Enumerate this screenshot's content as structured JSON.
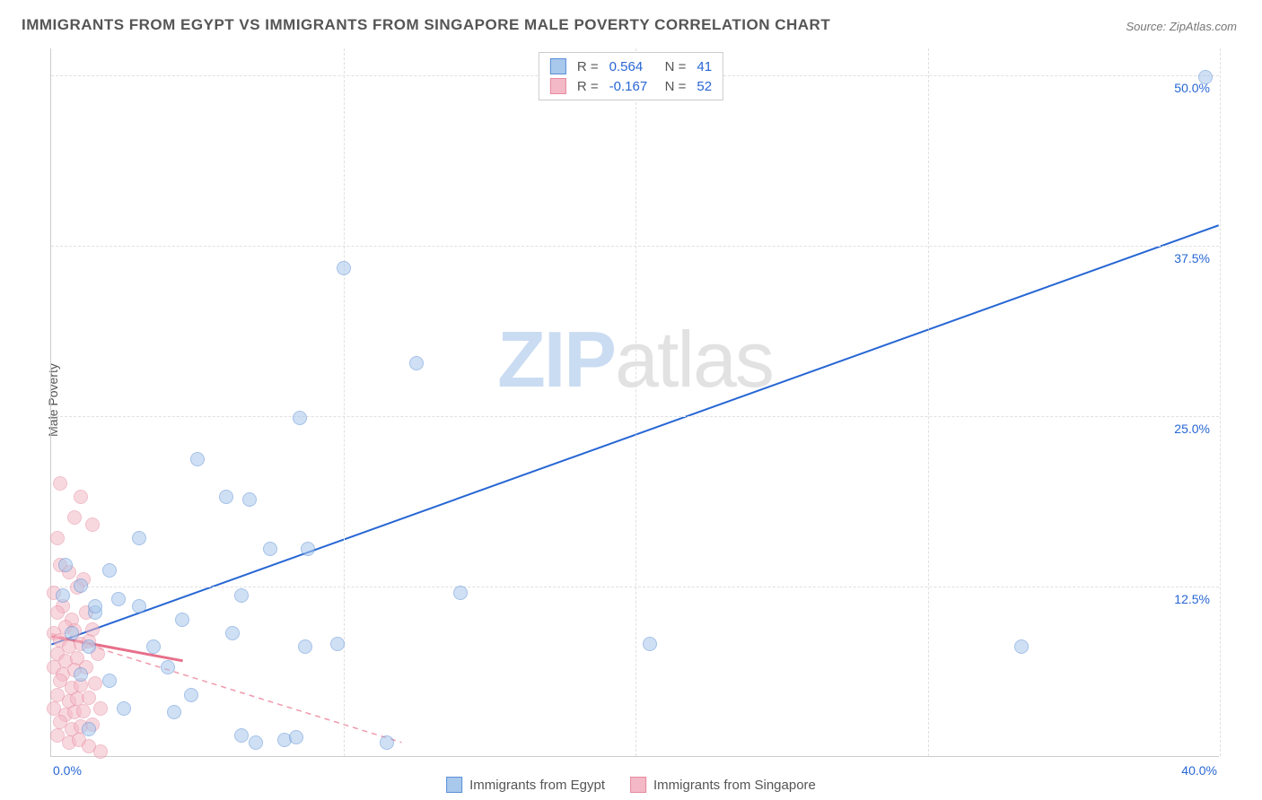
{
  "title": "IMMIGRANTS FROM EGYPT VS IMMIGRANTS FROM SINGAPORE MALE POVERTY CORRELATION CHART",
  "source": "Source: ZipAtlas.com",
  "ylabel": "Male Poverty",
  "watermark_bold": "ZIP",
  "watermark_rest": "atlas",
  "chart": {
    "type": "scatter",
    "xlim": [
      0,
      40
    ],
    "ylim": [
      0,
      52
    ],
    "xtick_min_label": "0.0%",
    "xtick_max_label": "40.0%",
    "yticks": [
      12.5,
      25.0,
      37.5,
      50.0
    ],
    "ytick_labels": [
      "12.5%",
      "25.0%",
      "37.5%",
      "50.0%"
    ],
    "xgrid": [
      10,
      20,
      30,
      40
    ],
    "plot_bg": "#ffffff",
    "grid_color": "#e0e0e0",
    "axis_color": "#cccccc"
  },
  "series": {
    "egypt": {
      "label": "Immigrants from Egypt",
      "color_fill": "#a8c8ec",
      "color_stroke": "#5b8fd6",
      "r_label": "R =",
      "r_value": "0.564",
      "n_label": "N =",
      "n_value": "41",
      "trend": {
        "x1": 0,
        "y1": 8.2,
        "x2": 40,
        "y2": 39.0,
        "width": 2,
        "dash": "none",
        "color": "#2766d4"
      },
      "points": [
        [
          39.5,
          49.8
        ],
        [
          10.0,
          35.8
        ],
        [
          12.5,
          28.8
        ],
        [
          8.5,
          24.8
        ],
        [
          5.0,
          21.8
        ],
        [
          6.0,
          19.0
        ],
        [
          6.8,
          18.8
        ],
        [
          3.0,
          16.0
        ],
        [
          7.5,
          15.2
        ],
        [
          8.8,
          15.2
        ],
        [
          2.0,
          13.6
        ],
        [
          33.2,
          8.0
        ],
        [
          0.5,
          14.0
        ],
        [
          1.0,
          12.5
        ],
        [
          3.0,
          11.0
        ],
        [
          1.5,
          10.5
        ],
        [
          4.5,
          10.0
        ],
        [
          2.3,
          11.5
        ],
        [
          20.5,
          8.2
        ],
        [
          14.0,
          12.0
        ],
        [
          6.5,
          11.8
        ],
        [
          6.2,
          9.0
        ],
        [
          8.7,
          8.0
        ],
        [
          9.8,
          8.2
        ],
        [
          3.5,
          8.0
        ],
        [
          4.0,
          6.5
        ],
        [
          4.8,
          4.5
        ],
        [
          2.0,
          5.5
        ],
        [
          1.3,
          8.0
        ],
        [
          0.7,
          9.0
        ],
        [
          1.0,
          6.0
        ],
        [
          2.5,
          3.5
        ],
        [
          4.2,
          3.2
        ],
        [
          6.5,
          1.5
        ],
        [
          7.0,
          1.0
        ],
        [
          8.0,
          1.2
        ],
        [
          8.4,
          1.4
        ],
        [
          11.5,
          1.0
        ],
        [
          1.3,
          2.0
        ],
        [
          1.5,
          11.0
        ],
        [
          0.4,
          11.8
        ]
      ]
    },
    "singapore": {
      "label": "Immigrants from Singapore",
      "color_fill": "#f4b9c6",
      "color_stroke": "#e58ba0",
      "r_label": "R =",
      "r_value": "-0.167",
      "n_label": "N =",
      "n_value": "52",
      "trend": {
        "x1": 0,
        "y1": 9.0,
        "x2": 12,
        "y2": 1.0,
        "width": 1.5,
        "dash": "6,5",
        "color": "#f099ac"
      },
      "trend_solid": {
        "x1": 0,
        "y1": 8.8,
        "x2": 4.5,
        "y2": 7.0,
        "width": 3,
        "color": "#e76f8a"
      },
      "points": [
        [
          0.3,
          20.0
        ],
        [
          1.0,
          19.0
        ],
        [
          0.8,
          17.5
        ],
        [
          0.2,
          16.0
        ],
        [
          1.4,
          17.0
        ],
        [
          0.3,
          14.0
        ],
        [
          0.6,
          13.5
        ],
        [
          1.1,
          13.0
        ],
        [
          0.1,
          12.0
        ],
        [
          0.9,
          12.4
        ],
        [
          0.4,
          11.0
        ],
        [
          0.2,
          10.5
        ],
        [
          0.7,
          10.0
        ],
        [
          1.2,
          10.5
        ],
        [
          0.5,
          9.5
        ],
        [
          0.1,
          9.0
        ],
        [
          0.8,
          9.2
        ],
        [
          1.4,
          9.3
        ],
        [
          0.3,
          8.5
        ],
        [
          0.6,
          8.0
        ],
        [
          1.0,
          8.2
        ],
        [
          1.3,
          8.4
        ],
        [
          0.2,
          7.5
        ],
        [
          0.5,
          7.0
        ],
        [
          0.9,
          7.2
        ],
        [
          1.6,
          7.5
        ],
        [
          0.1,
          6.5
        ],
        [
          0.4,
          6.0
        ],
        [
          0.8,
          6.3
        ],
        [
          1.2,
          6.5
        ],
        [
          0.3,
          5.5
        ],
        [
          0.7,
          5.0
        ],
        [
          1.0,
          5.2
        ],
        [
          1.5,
          5.3
        ],
        [
          0.2,
          4.5
        ],
        [
          0.6,
          4.0
        ],
        [
          0.9,
          4.2
        ],
        [
          1.3,
          4.3
        ],
        [
          0.1,
          3.5
        ],
        [
          0.5,
          3.0
        ],
        [
          0.8,
          3.2
        ],
        [
          1.1,
          3.3
        ],
        [
          1.7,
          3.5
        ],
        [
          0.3,
          2.5
        ],
        [
          0.7,
          2.0
        ],
        [
          1.0,
          2.2
        ],
        [
          1.4,
          2.3
        ],
        [
          0.2,
          1.5
        ],
        [
          0.6,
          1.0
        ],
        [
          0.95,
          1.2
        ],
        [
          1.3,
          0.7
        ],
        [
          1.7,
          0.3
        ]
      ]
    }
  },
  "colors": {
    "title": "#555555",
    "tick": "#2766d4",
    "source": "#777777"
  }
}
